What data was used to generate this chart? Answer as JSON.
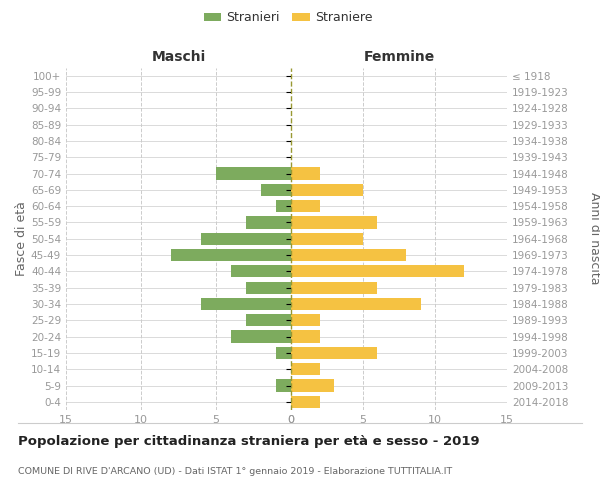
{
  "age_groups": [
    "0-4",
    "5-9",
    "10-14",
    "15-19",
    "20-24",
    "25-29",
    "30-34",
    "35-39",
    "40-44",
    "45-49",
    "50-54",
    "55-59",
    "60-64",
    "65-69",
    "70-74",
    "75-79",
    "80-84",
    "85-89",
    "90-94",
    "95-99",
    "100+"
  ],
  "birth_years": [
    "2014-2018",
    "2009-2013",
    "2004-2008",
    "1999-2003",
    "1994-1998",
    "1989-1993",
    "1984-1988",
    "1979-1983",
    "1974-1978",
    "1969-1973",
    "1964-1968",
    "1959-1963",
    "1954-1958",
    "1949-1953",
    "1944-1948",
    "1939-1943",
    "1934-1938",
    "1929-1933",
    "1924-1928",
    "1919-1923",
    "≤ 1918"
  ],
  "males": [
    0,
    1,
    0,
    1,
    4,
    3,
    6,
    3,
    4,
    8,
    6,
    3,
    1,
    2,
    5,
    0,
    0,
    0,
    0,
    0,
    0
  ],
  "females": [
    2,
    3,
    2,
    6,
    2,
    2,
    9,
    6,
    12,
    8,
    5,
    6,
    2,
    5,
    2,
    0,
    0,
    0,
    0,
    0,
    0
  ],
  "male_color": "#7dab5e",
  "female_color": "#f5c242",
  "title": "Popolazione per cittadinanza straniera per età e sesso - 2019",
  "subtitle": "COMUNE DI RIVE D'ARCANO (UD) - Dati ISTAT 1° gennaio 2019 - Elaborazione TUTTITALIA.IT",
  "xlabel_left": "Maschi",
  "xlabel_right": "Femmine",
  "ylabel_left": "Fasce di età",
  "ylabel_right": "Anni di nascita",
  "legend_male": "Stranieri",
  "legend_female": "Straniere",
  "xlim": 15,
  "bg_color": "#ffffff",
  "grid_color": "#cccccc",
  "bar_height": 0.75,
  "center_line_color": "#999933",
  "tick_label_color": "#999999",
  "axis_label_color": "#666666"
}
